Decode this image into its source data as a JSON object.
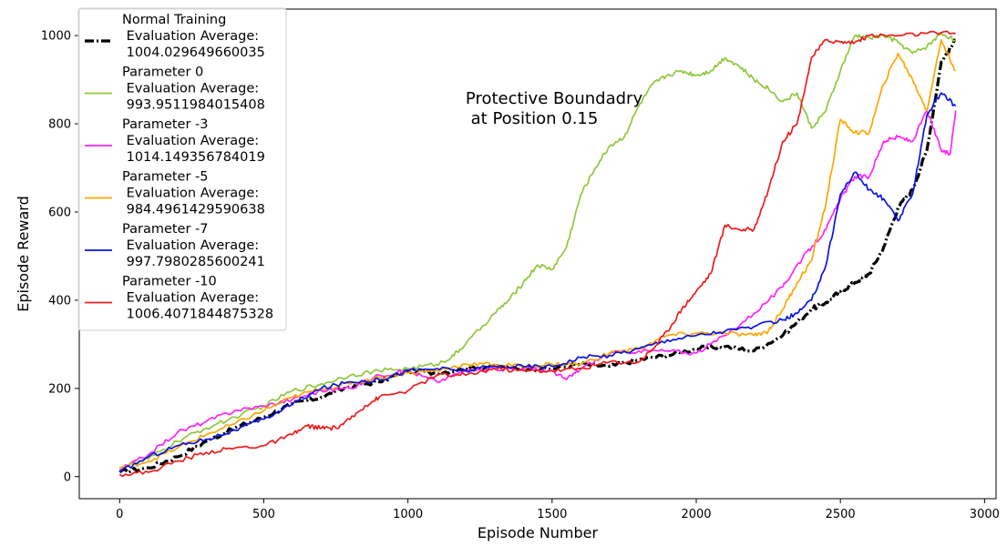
{
  "chart_data": {
    "type": "line",
    "xlabel": "Episode Number",
    "ylabel": "Episode Reward",
    "xlim": [
      -140,
      3040
    ],
    "ylim": [
      -50,
      1060
    ],
    "xticks": [
      0,
      500,
      1000,
      1500,
      2000,
      2500,
      3000
    ],
    "yticks": [
      0,
      200,
      400,
      600,
      800,
      1000
    ],
    "annotation": {
      "lines": [
        "Protective Boundadry",
        " at Position 0.15"
      ],
      "x": 1200,
      "y": 845
    },
    "legend": {
      "placement": "upper-left"
    },
    "grid": false,
    "series": [
      {
        "name_lines": [
          "Normal Training",
          " Evaluation Average:",
          " 1004.029649660035"
        ],
        "color": "#000000",
        "style": "dashdot",
        "x": [
          0,
          100,
          200,
          300,
          400,
          500,
          600,
          700,
          800,
          900,
          1000,
          1100,
          1200,
          1300,
          1400,
          1500,
          1600,
          1700,
          1800,
          1900,
          2000,
          2100,
          2200,
          2300,
          2400,
          2450,
          2500,
          2550,
          2600,
          2650,
          2700,
          2750,
          2800,
          2850,
          2900
        ],
        "y": [
          10,
          20,
          45,
          80,
          110,
          135,
          165,
          180,
          205,
          215,
          240,
          235,
          245,
          250,
          245,
          245,
          255,
          250,
          265,
          275,
          290,
          295,
          285,
          320,
          380,
          395,
          420,
          440,
          460,
          520,
          610,
          650,
          740,
          940,
          990
        ]
      },
      {
        "name_lines": [
          "Parameter 0",
          " Evaluation Average:",
          " 993.9511984015408"
        ],
        "color": "#8fc83c",
        "style": "solid",
        "x": [
          0,
          100,
          200,
          300,
          400,
          500,
          600,
          700,
          800,
          900,
          1000,
          1100,
          1150,
          1200,
          1300,
          1350,
          1400,
          1450,
          1500,
          1550,
          1600,
          1650,
          1700,
          1750,
          1800,
          1850,
          1900,
          1950,
          2000,
          2050,
          2100,
          2150,
          2200,
          2250,
          2300,
          2350,
          2400,
          2450,
          2500,
          2550,
          2600,
          2650,
          2700,
          2750,
          2800,
          2850,
          2900
        ],
        "y": [
          20,
          40,
          80,
          110,
          135,
          160,
          195,
          210,
          230,
          240,
          245,
          255,
          270,
          300,
          370,
          400,
          440,
          480,
          470,
          520,
          640,
          700,
          750,
          770,
          840,
          890,
          910,
          920,
          910,
          920,
          950,
          930,
          900,
          880,
          850,
          870,
          790,
          830,
          920,
          1000,
          995,
          1000,
          985,
          960,
          975,
          1005,
          990
        ]
      },
      {
        "name_lines": [
          "Parameter -3",
          " Evaluation Average:",
          " 1014.149356784019"
        ],
        "color": "#ff22ff",
        "style": "solid",
        "x": [
          0,
          100,
          200,
          300,
          400,
          500,
          600,
          700,
          800,
          900,
          1000,
          1100,
          1200,
          1300,
          1400,
          1500,
          1550,
          1600,
          1700,
          1800,
          1900,
          2000,
          2100,
          2200,
          2300,
          2350,
          2400,
          2450,
          2500,
          2550,
          2600,
          2650,
          2700,
          2750,
          2800,
          2850,
          2880,
          2900
        ],
        "y": [
          15,
          50,
          100,
          125,
          150,
          160,
          175,
          195,
          200,
          230,
          240,
          215,
          240,
          245,
          245,
          240,
          220,
          245,
          280,
          285,
          285,
          280,
          320,
          370,
          430,
          480,
          520,
          560,
          630,
          680,
          680,
          760,
          770,
          760,
          830,
          740,
          730,
          830
        ]
      },
      {
        "name_lines": [
          "Parameter -5",
          " Evaluation Average:",
          " 984.4961429590638"
        ],
        "color": "#ffa500",
        "style": "solid",
        "x": [
          0,
          100,
          200,
          300,
          400,
          500,
          600,
          700,
          800,
          900,
          1000,
          1100,
          1200,
          1300,
          1400,
          1500,
          1600,
          1700,
          1800,
          1900,
          2000,
          2100,
          2200,
          2250,
          2300,
          2350,
          2400,
          2450,
          2500,
          2550,
          2600,
          2650,
          2700,
          2750,
          2800,
          2850,
          2900
        ],
        "y": [
          20,
          35,
          65,
          95,
          120,
          150,
          180,
          200,
          210,
          225,
          235,
          240,
          255,
          255,
          250,
          255,
          255,
          280,
          290,
          320,
          325,
          325,
          320,
          330,
          380,
          440,
          490,
          620,
          810,
          780,
          780,
          890,
          960,
          900,
          830,
          990,
          920
        ]
      },
      {
        "name_lines": [
          "Parameter -7",
          " Evaluation Average:",
          " 997.7980285600241"
        ],
        "color": "#0a14e6",
        "style": "solid",
        "x": [
          0,
          100,
          200,
          300,
          400,
          500,
          600,
          700,
          800,
          900,
          1000,
          1100,
          1200,
          1300,
          1400,
          1500,
          1600,
          1700,
          1800,
          1900,
          2000,
          2100,
          2200,
          2300,
          2350,
          2400,
          2450,
          2500,
          2550,
          2600,
          2650,
          2700,
          2750,
          2800,
          2850,
          2900
        ],
        "y": [
          10,
          45,
          70,
          85,
          105,
          130,
          165,
          200,
          215,
          220,
          240,
          245,
          240,
          250,
          250,
          250,
          270,
          275,
          290,
          310,
          320,
          330,
          340,
          355,
          370,
          400,
          480,
          640,
          690,
          650,
          630,
          580,
          640,
          820,
          870,
          840
        ]
      },
      {
        "name_lines": [
          "Parameter -10",
          " Evaluation Average:",
          " 1006.4071844875328"
        ],
        "color": "#ee1c1c",
        "style": "solid",
        "x": [
          0,
          100,
          200,
          300,
          400,
          500,
          600,
          650,
          700,
          750,
          800,
          850,
          900,
          1000,
          1100,
          1200,
          1300,
          1400,
          1500,
          1600,
          1700,
          1800,
          1850,
          1900,
          1950,
          2000,
          2050,
          2100,
          2150,
          2200,
          2250,
          2300,
          2350,
          2400,
          2450,
          2500,
          2550,
          2600,
          2700,
          2800,
          2900
        ],
        "y": [
          5,
          10,
          35,
          55,
          65,
          70,
          95,
          115,
          110,
          110,
          130,
          160,
          180,
          195,
          230,
          230,
          245,
          240,
          240,
          245,
          260,
          260,
          290,
          330,
          380,
          420,
          460,
          570,
          560,
          560,
          650,
          760,
          800,
          950,
          990,
          985,
          985,
          1000,
          1000,
          1005,
          1005
        ]
      }
    ]
  }
}
